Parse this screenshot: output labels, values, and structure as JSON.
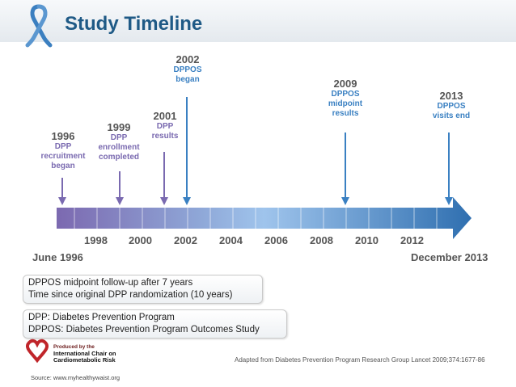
{
  "title": "Study Timeline",
  "colors": {
    "title": "#1f5a86",
    "purple": "#7a6ab0",
    "blue": "#3a80c2",
    "arrow": "#2f6fb0"
  },
  "events": [
    {
      "year": "1996",
      "desc": [
        "DPP",
        "recruitment",
        "began"
      ]
    },
    {
      "year": "1999",
      "desc": [
        "DPP",
        "enrollment",
        "completed"
      ]
    },
    {
      "year": "2001",
      "desc": [
        "DPP",
        "results"
      ]
    },
    {
      "year": "2002",
      "desc": [
        "DPPOS",
        "began"
      ]
    },
    {
      "year": "2009",
      "desc": [
        "DPPOS",
        "midpoint",
        "results"
      ]
    },
    {
      "year": "2013",
      "desc": [
        "DPPOS",
        "visits end"
      ]
    }
  ],
  "axis_years": [
    "1998",
    "2000",
    "2002",
    "2004",
    "2006",
    "2008",
    "2010",
    "2012"
  ],
  "start_label": "June 1996",
  "end_label": "December 2013",
  "notes": {
    "midpoint": [
      "DPPOS midpoint follow-up after 7 years",
      "Time since original DPP randomization (10 years)"
    ],
    "definitions": [
      "DPP: Diabetes Prevention Program",
      "DPPOS: Diabetes Prevention Program Outcomes Study"
    ]
  },
  "produced": {
    "line1": "Produced by the",
    "line2": "International Chair on",
    "line3": "Cardiometabolic Risk"
  },
  "source": "Source: www.myhealthywaist.org",
  "adapted": "Adapted from Diabetes Prevention Program Research Group Lancet 2009;374:1677-86"
}
